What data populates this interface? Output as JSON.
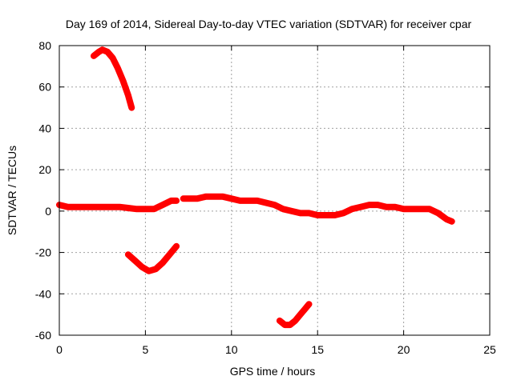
{
  "chart_data": {
    "type": "scatter",
    "title": "Day 169 of 2014, Sidereal Day-to-day VTEC variation (SDTVAR) for receiver cpar",
    "xlabel": "GPS time / hours",
    "ylabel": "SDTVAR / TECUs",
    "xlim": [
      0,
      25
    ],
    "ylim": [
      -60,
      80
    ],
    "xticks": [
      0,
      5,
      10,
      15,
      20,
      25
    ],
    "yticks": [
      -60,
      -40,
      -20,
      0,
      20,
      40,
      60,
      80
    ],
    "grid": true,
    "color": "#ff0000",
    "series": [
      {
        "name": "arc-1",
        "x": [
          0,
          0.5,
          1,
          1.5,
          2,
          2.5,
          3,
          3.5,
          4,
          4.5,
          5,
          5.5,
          6,
          6.5,
          6.8
        ],
        "y": [
          3,
          2,
          2,
          2,
          2,
          2,
          2,
          2,
          1.5,
          1,
          1,
          1,
          3,
          5,
          5
        ]
      },
      {
        "name": "arc-2",
        "x": [
          7.2,
          7.5,
          8,
          8.5,
          9,
          9.5,
          10,
          10.5,
          11,
          11.5,
          12,
          12.5,
          13,
          13.5,
          14,
          14.5,
          15,
          15.5,
          16,
          16.5,
          17,
          17.5,
          18,
          18.5,
          19,
          19.5,
          20,
          20.5,
          21,
          21.5,
          22,
          22.5,
          22.8
        ],
        "y": [
          6,
          6,
          6,
          7,
          7,
          7,
          6,
          5,
          5,
          5,
          4,
          3,
          1,
          0,
          -1,
          -1,
          -2,
          -2,
          -2,
          -1,
          1,
          2,
          3,
          3,
          2,
          2,
          1,
          1,
          1,
          1,
          -1,
          -4,
          -5
        ]
      },
      {
        "name": "arc-3",
        "x": [
          2.0,
          2.3,
          2.5,
          2.8,
          3.1,
          3.4,
          3.7,
          4.0,
          4.2
        ],
        "y": [
          75,
          77,
          78,
          77,
          74,
          69,
          63,
          56,
          50
        ]
      },
      {
        "name": "arc-4",
        "x": [
          4.0,
          4.4,
          4.8,
          5.2,
          5.6,
          6.0,
          6.4,
          6.8
        ],
        "y": [
          -21,
          -24,
          -27,
          -29,
          -28,
          -25,
          -21,
          -17
        ]
      },
      {
        "name": "arc-5",
        "x": [
          12.8,
          13.1,
          13.4,
          13.7,
          14.0,
          14.3,
          14.5
        ],
        "y": [
          -53,
          -55,
          -55,
          -53,
          -50,
          -47,
          -45
        ]
      }
    ]
  }
}
